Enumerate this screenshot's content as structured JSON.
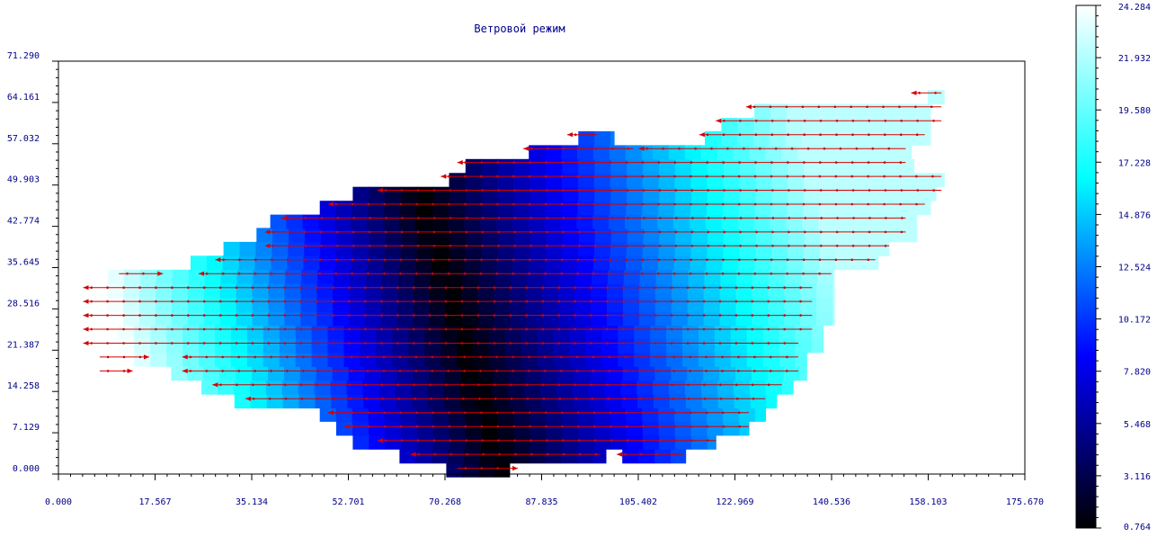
{
  "chart_data": {
    "type": "heatmap",
    "title": "Ветровой режим",
    "xlim": [
      0,
      175.67
    ],
    "ylim": [
      0,
      71.29
    ],
    "x_ticks": [
      "0.000",
      "17.567",
      "35.134",
      "52.701",
      "70.268",
      "87.835",
      "105.402",
      "122.969",
      "140.536",
      "158.103",
      "175.670"
    ],
    "y_ticks": [
      "0.000",
      "7.129",
      "14.258",
      "21.387",
      "28.516",
      "35.645",
      "42.774",
      "49.903",
      "57.032",
      "64.161",
      "71.290"
    ],
    "colorbar": {
      "min": 0.764,
      "max": 24.284,
      "ticks": [
        "24.284",
        "21.932",
        "19.580",
        "17.228",
        "14.876",
        "12.524",
        "10.172",
        "7.820",
        "5.468",
        "3.116",
        "0.764"
      ],
      "colors": [
        "#000000",
        "#0000ff",
        "#00ffff",
        "#ffffff"
      ]
    },
    "cell_size": [
      2.93,
      2.38
    ],
    "valley": {
      "x_at_y0": 80.5,
      "x_at_ymax": 59.0,
      "min_value": 0.764
    },
    "field_rule": "wind speed grows away from valley; east side to ~22, west side to ~24.3",
    "vector_color": "#d40000",
    "vector_direction": "westward along rows; short eastward arrows near western edge",
    "domain_rows": [
      {
        "y": 0.7,
        "x0": 70.5,
        "x1": 82.0
      },
      {
        "y": 3.1,
        "x0": 62.0,
        "x1": 99.5
      },
      {
        "y": 3.1,
        "x0": 102.5,
        "x1": 114.0
      },
      {
        "y": 5.5,
        "x0": 53.5,
        "x1": 119.5
      },
      {
        "y": 7.9,
        "x0": 50.5,
        "x1": 125.5
      },
      {
        "y": 10.3,
        "x0": 47.5,
        "x1": 128.5
      },
      {
        "y": 12.6,
        "x0": 32.0,
        "x1": 130.5
      },
      {
        "y": 15.0,
        "x0": 26.0,
        "x1": 133.5
      },
      {
        "y": 17.4,
        "x0": 20.5,
        "x1": 136.0
      },
      {
        "y": 19.8,
        "x0": 5.0,
        "x1": 136.0
      },
      {
        "y": 22.2,
        "x0": 5.0,
        "x1": 139.0
      },
      {
        "y": 24.6,
        "x0": 5.0,
        "x1": 139.0
      },
      {
        "y": 26.9,
        "x0": 3.0,
        "x1": 141.0
      },
      {
        "y": 29.3,
        "x0": 3.0,
        "x1": 141.0
      },
      {
        "y": 31.7,
        "x0": 3.0,
        "x1": 141.0
      },
      {
        "y": 34.1,
        "x0": 9.0,
        "x1": 141.0
      },
      {
        "y": 36.5,
        "x0": 24.0,
        "x1": 149.0
      },
      {
        "y": 38.9,
        "x0": 30.0,
        "x1": 151.0
      },
      {
        "y": 41.3,
        "x0": 36.0,
        "x1": 156.0
      },
      {
        "y": 43.6,
        "x0": 38.5,
        "x1": 156.0
      },
      {
        "y": 46.0,
        "x0": 47.5,
        "x1": 158.5
      },
      {
        "y": 48.4,
        "x0": 53.5,
        "x1": 159.5
      },
      {
        "y": 50.8,
        "x0": 71.0,
        "x1": 161.0
      },
      {
        "y": 53.2,
        "x0": 74.0,
        "x1": 155.5
      },
      {
        "y": 55.6,
        "x0": 85.5,
        "x1": 155.0
      },
      {
        "y": 55.6,
        "x0": 108.0,
        "x1": 155.0
      },
      {
        "y": 58.0,
        "x0": 94.5,
        "x1": 101.0
      },
      {
        "y": 58.0,
        "x0": 117.5,
        "x1": 158.5
      },
      {
        "y": 60.3,
        "x0": 120.5,
        "x1": 158.5
      },
      {
        "y": 62.7,
        "x0": 126.5,
        "x1": 158.5
      },
      {
        "y": 65.1,
        "x0": 158.0,
        "x1": 161.0
      }
    ],
    "vectors": [
      {
        "y": 65.8,
        "x0": 155.0,
        "x1": 160.5
      },
      {
        "y": 63.4,
        "x0": 125.0,
        "x1": 160.5
      },
      {
        "y": 61.0,
        "x0": 119.5,
        "x1": 160.5
      },
      {
        "y": 58.6,
        "x0": 116.5,
        "x1": 157.5
      },
      {
        "y": 58.6,
        "x0": 92.5,
        "x1": 98.0
      },
      {
        "y": 56.2,
        "x0": 105.5,
        "x1": 154.0
      },
      {
        "y": 56.2,
        "x0": 84.5,
        "x1": 104.5
      },
      {
        "y": 53.8,
        "x0": 72.5,
        "x1": 154.0
      },
      {
        "y": 51.4,
        "x0": 69.5,
        "x1": 160.5
      },
      {
        "y": 49.0,
        "x0": 58.0,
        "x1": 160.5
      },
      {
        "y": 46.6,
        "x0": 49.0,
        "x1": 157.5
      },
      {
        "y": 44.2,
        "x0": 40.5,
        "x1": 154.0
      },
      {
        "y": 41.8,
        "x0": 37.5,
        "x1": 154.0
      },
      {
        "y": 39.4,
        "x0": 37.5,
        "x1": 151.0
      },
      {
        "y": 37.0,
        "x0": 28.5,
        "x1": 148.5
      },
      {
        "y": 34.6,
        "x0": 11.0,
        "x1": 19.0
      },
      {
        "y": 34.6,
        "x0": 25.5,
        "x1": 140.5
      },
      {
        "y": 32.2,
        "x0": 4.5,
        "x1": 137.0
      },
      {
        "y": 29.8,
        "x0": 4.5,
        "x1": 137.0
      },
      {
        "y": 27.4,
        "x0": 4.5,
        "x1": 137.0
      },
      {
        "y": 25.0,
        "x0": 4.5,
        "x1": 137.0
      },
      {
        "y": 22.6,
        "x0": 4.5,
        "x1": 134.5
      },
      {
        "y": 20.2,
        "x0": 7.5,
        "x1": 16.5
      },
      {
        "y": 20.2,
        "x0": 22.5,
        "x1": 134.5
      },
      {
        "y": 17.8,
        "x0": 7.5,
        "x1": 13.5
      },
      {
        "y": 17.8,
        "x0": 22.5,
        "x1": 134.5
      },
      {
        "y": 15.4,
        "x0": 28.0,
        "x1": 131.5
      },
      {
        "y": 13.0,
        "x0": 34.0,
        "x1": 128.5
      },
      {
        "y": 10.6,
        "x0": 49.0,
        "x1": 125.5
      },
      {
        "y": 8.2,
        "x0": 52.0,
        "x1": 125.5
      },
      {
        "y": 5.8,
        "x0": 58.0,
        "x1": 119.5
      },
      {
        "y": 3.4,
        "x0": 64.0,
        "x1": 98.5
      },
      {
        "y": 3.4,
        "x0": 101.5,
        "x1": 113.5
      },
      {
        "y": 1.0,
        "x0": 72.5,
        "x1": 83.5
      }
    ],
    "eastward_vectors": [
      {
        "y": 34.6,
        "x0": 11.0,
        "x1": 19.0
      },
      {
        "y": 20.2,
        "x0": 7.5,
        "x1": 16.5
      },
      {
        "y": 17.8,
        "x0": 7.5,
        "x1": 13.5
      },
      {
        "y": 1.0,
        "x0": 72.5,
        "x1": 83.5
      }
    ]
  }
}
